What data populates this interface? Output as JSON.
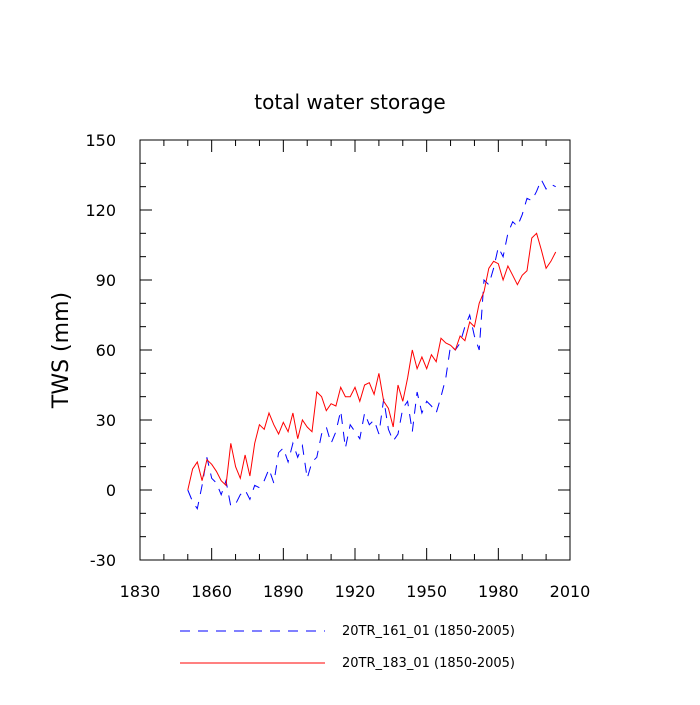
{
  "chart_data": {
    "type": "line",
    "title": "total water storage",
    "xlabel": "",
    "ylabel": "TWS  (mm)",
    "xlim": [
      1830,
      2010
    ],
    "ylim": [
      -30,
      150
    ],
    "xticks": [
      1830,
      1860,
      1890,
      1920,
      1950,
      1980,
      2010
    ],
    "yticks": [
      -30,
      0,
      30,
      60,
      90,
      120,
      150
    ],
    "grid": false,
    "legend_position": "bottom",
    "series": [
      {
        "name": "20TR_161_01 (1850-2005)",
        "color": "#0000ff",
        "style": "dashed",
        "x": [
          1850,
          1852,
          1854,
          1856,
          1858,
          1860,
          1862,
          1864,
          1866,
          1868,
          1870,
          1872,
          1874,
          1876,
          1878,
          1880,
          1882,
          1884,
          1886,
          1888,
          1890,
          1892,
          1894,
          1896,
          1898,
          1900,
          1902,
          1904,
          1906,
          1908,
          1910,
          1912,
          1914,
          1916,
          1918,
          1920,
          1922,
          1924,
          1926,
          1928,
          1930,
          1932,
          1934,
          1936,
          1938,
          1940,
          1942,
          1944,
          1946,
          1948,
          1950,
          1952,
          1954,
          1956,
          1958,
          1960,
          1962,
          1964,
          1966,
          1968,
          1970,
          1972,
          1974,
          1976,
          1978,
          1980,
          1982,
          1984,
          1986,
          1988,
          1990,
          1992,
          1994,
          1996,
          1998,
          2000,
          2002,
          2004
        ],
        "y": [
          0,
          -5,
          -8,
          2,
          14,
          5,
          3,
          -2,
          4,
          -7,
          -6,
          -2,
          0,
          -4,
          2,
          1,
          4,
          9,
          3,
          16,
          18,
          12,
          20,
          14,
          19,
          5,
          12,
          14,
          24,
          27,
          20,
          25,
          34,
          18,
          28,
          25,
          22,
          33,
          28,
          30,
          24,
          39,
          26,
          21,
          24,
          35,
          38,
          25,
          42,
          33,
          38,
          36,
          33,
          40,
          48,
          62,
          60,
          63,
          70,
          75,
          66,
          60,
          90,
          88,
          95,
          104,
          100,
          110,
          115,
          113,
          118,
          125,
          124,
          128,
          133,
          129,
          131,
          130
        ]
      },
      {
        "name": "20TR_183_01 (1850-2005)",
        "color": "#ff0000",
        "style": "solid",
        "x": [
          1850,
          1852,
          1854,
          1856,
          1858,
          1860,
          1862,
          1864,
          1866,
          1868,
          1870,
          1872,
          1874,
          1876,
          1878,
          1880,
          1882,
          1884,
          1886,
          1888,
          1890,
          1892,
          1894,
          1896,
          1898,
          1900,
          1902,
          1904,
          1906,
          1908,
          1910,
          1912,
          1914,
          1916,
          1918,
          1920,
          1922,
          1924,
          1926,
          1928,
          1930,
          1932,
          1934,
          1936,
          1938,
          1940,
          1942,
          1944,
          1946,
          1948,
          1950,
          1952,
          1954,
          1956,
          1958,
          1960,
          1962,
          1964,
          1966,
          1968,
          1970,
          1972,
          1974,
          1976,
          1978,
          1980,
          1982,
          1984,
          1986,
          1988,
          1990,
          1992,
          1994,
          1996,
          1998,
          2000,
          2002,
          2004
        ],
        "y": [
          0,
          9,
          12,
          4,
          13,
          11,
          8,
          4,
          2,
          20,
          10,
          5,
          15,
          6,
          20,
          28,
          26,
          33,
          28,
          24,
          29,
          25,
          33,
          22,
          30,
          27,
          25,
          42,
          40,
          34,
          37,
          36,
          44,
          40,
          40,
          44,
          38,
          45,
          46,
          41,
          50,
          38,
          35,
          27,
          45,
          38,
          48,
          60,
          52,
          57,
          52,
          58,
          55,
          65,
          63,
          62,
          60,
          66,
          64,
          72,
          70,
          80,
          85,
          95,
          98,
          97,
          90,
          96,
          92,
          88,
          92,
          94,
          108,
          110,
          103,
          95,
          98,
          102
        ]
      }
    ]
  }
}
